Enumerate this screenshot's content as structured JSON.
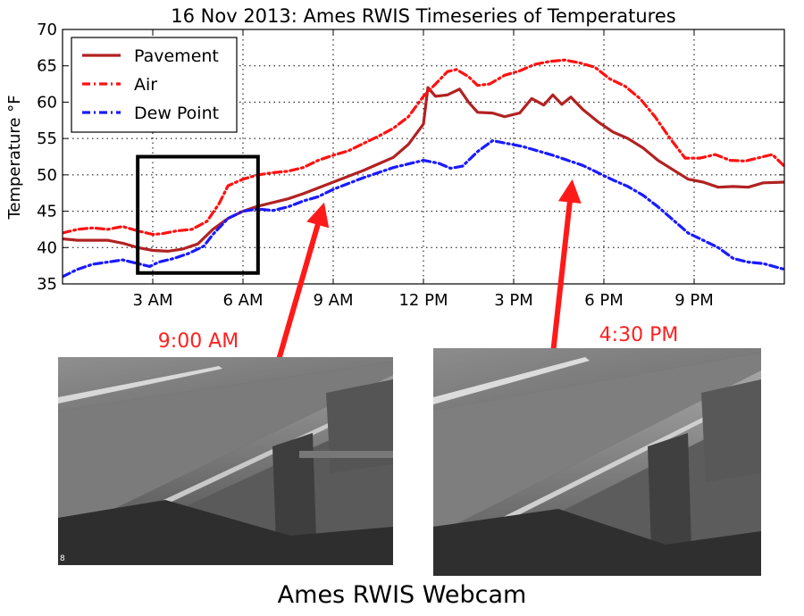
{
  "chart_data": {
    "type": "line",
    "title": "16 Nov 2013: Ames RWIS Timeseries of Temperatures",
    "ylabel": "Temperature °F",
    "xlabel": "",
    "xlim": [
      0,
      24
    ],
    "ylim": [
      35,
      70
    ],
    "grid": true,
    "legend_position": "top-left",
    "x_ticks": [
      {
        "value": 3,
        "label": "3 AM"
      },
      {
        "value": 6,
        "label": "6 AM"
      },
      {
        "value": 9,
        "label": "9 AM"
      },
      {
        "value": 12,
        "label": "12 PM"
      },
      {
        "value": 15,
        "label": "3 PM"
      },
      {
        "value": 18,
        "label": "6 PM"
      },
      {
        "value": 21,
        "label": "9 PM"
      }
    ],
    "y_ticks": [
      35,
      40,
      45,
      50,
      55,
      60,
      65,
      70
    ],
    "series": [
      {
        "name": "Pavement",
        "color": "#b22222",
        "style": "solid",
        "points": [
          [
            0,
            41.2
          ],
          [
            0.5,
            41
          ],
          [
            1,
            41
          ],
          [
            1.5,
            41
          ],
          [
            2,
            40.6
          ],
          [
            2.5,
            40
          ],
          [
            3,
            39.6
          ],
          [
            3.5,
            39.5
          ],
          [
            4,
            39.8
          ],
          [
            4.5,
            40.5
          ],
          [
            5,
            42.5
          ],
          [
            5.5,
            44
          ],
          [
            6,
            45
          ],
          [
            6.5,
            45.7
          ],
          [
            7,
            46.2
          ],
          [
            7.5,
            46.7
          ],
          [
            8,
            47.4
          ],
          [
            8.5,
            48.2
          ],
          [
            9,
            49
          ],
          [
            9.5,
            49.8
          ],
          [
            10,
            50.6
          ],
          [
            10.5,
            51.5
          ],
          [
            11,
            52.4
          ],
          [
            11.5,
            54.2
          ],
          [
            12,
            57
          ],
          [
            12.15,
            62
          ],
          [
            12.4,
            60.8
          ],
          [
            12.8,
            61
          ],
          [
            13.2,
            61.8
          ],
          [
            13.5,
            60
          ],
          [
            13.8,
            58.6
          ],
          [
            14.3,
            58.5
          ],
          [
            14.7,
            58
          ],
          [
            15.2,
            58.5
          ],
          [
            15.6,
            60.5
          ],
          [
            16,
            59.6
          ],
          [
            16.3,
            61
          ],
          [
            16.6,
            59.7
          ],
          [
            16.9,
            60.7
          ],
          [
            17.3,
            59
          ],
          [
            17.8,
            57.3
          ],
          [
            18.3,
            55.9
          ],
          [
            18.8,
            55
          ],
          [
            19.3,
            53.7
          ],
          [
            19.8,
            52
          ],
          [
            20.3,
            50.7
          ],
          [
            20.8,
            49.4
          ],
          [
            21.3,
            49
          ],
          [
            21.8,
            48.3
          ],
          [
            22.3,
            48.4
          ],
          [
            22.8,
            48.3
          ],
          [
            23.3,
            48.9
          ],
          [
            24,
            49
          ]
        ]
      },
      {
        "name": "Air",
        "color": "#ff1111",
        "style": "dashdot",
        "points": [
          [
            0,
            42
          ],
          [
            0.5,
            42.5
          ],
          [
            1,
            42.7
          ],
          [
            1.5,
            42.5
          ],
          [
            2,
            42.9
          ],
          [
            2.5,
            42.3
          ],
          [
            3,
            41.8
          ],
          [
            3.3,
            41.9
          ],
          [
            3.8,
            42.3
          ],
          [
            4.3,
            42.5
          ],
          [
            4.8,
            43.6
          ],
          [
            5.2,
            46
          ],
          [
            5.5,
            48.5
          ],
          [
            6,
            49.4
          ],
          [
            6.5,
            50
          ],
          [
            7,
            50.3
          ],
          [
            7.5,
            50.5
          ],
          [
            8,
            51
          ],
          [
            8.5,
            52
          ],
          [
            9,
            52.7
          ],
          [
            9.5,
            53.3
          ],
          [
            10,
            54.3
          ],
          [
            10.5,
            55.3
          ],
          [
            11,
            56.4
          ],
          [
            11.5,
            58
          ],
          [
            12,
            60.8
          ],
          [
            12.4,
            62.5
          ],
          [
            12.8,
            64.2
          ],
          [
            13.1,
            64.5
          ],
          [
            13.5,
            63.5
          ],
          [
            13.8,
            62.3
          ],
          [
            14.2,
            62.5
          ],
          [
            14.7,
            63.7
          ],
          [
            15.2,
            64.3
          ],
          [
            15.7,
            65.2
          ],
          [
            16.2,
            65.6
          ],
          [
            16.7,
            65.8
          ],
          [
            17.2,
            65.4
          ],
          [
            17.7,
            64.8
          ],
          [
            18.2,
            63.2
          ],
          [
            18.7,
            62.2
          ],
          [
            19.2,
            60.5
          ],
          [
            19.7,
            58
          ],
          [
            20.2,
            55
          ],
          [
            20.7,
            52.3
          ],
          [
            21.2,
            52.3
          ],
          [
            21.7,
            52.8
          ],
          [
            22.2,
            52
          ],
          [
            22.7,
            51.9
          ],
          [
            23.2,
            52.4
          ],
          [
            23.6,
            52.8
          ],
          [
            24,
            51.2
          ]
        ]
      },
      {
        "name": "Dew Point",
        "color": "#1a1aff",
        "style": "dashdot",
        "points": [
          [
            0,
            36
          ],
          [
            0.5,
            37
          ],
          [
            1,
            37.7
          ],
          [
            1.5,
            38
          ],
          [
            2,
            38.3
          ],
          [
            2.5,
            37.8
          ],
          [
            2.9,
            37.4
          ],
          [
            3.2,
            38
          ],
          [
            3.7,
            38.5
          ],
          [
            4.2,
            39.2
          ],
          [
            4.7,
            40.2
          ],
          [
            5,
            41.8
          ],
          [
            5.5,
            44
          ],
          [
            6,
            45
          ],
          [
            6.5,
            45.3
          ],
          [
            7,
            45.1
          ],
          [
            7.5,
            45.6
          ],
          [
            8,
            46.4
          ],
          [
            8.5,
            47
          ],
          [
            9,
            48
          ],
          [
            9.5,
            48.8
          ],
          [
            10,
            49.6
          ],
          [
            10.5,
            50.3
          ],
          [
            11,
            51
          ],
          [
            11.5,
            51.5
          ],
          [
            12,
            52
          ],
          [
            12.5,
            51.6
          ],
          [
            12.9,
            50.9
          ],
          [
            13.3,
            51.2
          ],
          [
            13.8,
            53.2
          ],
          [
            14.3,
            54.7
          ],
          [
            14.8,
            54.3
          ],
          [
            15.3,
            53.9
          ],
          [
            15.8,
            53.3
          ],
          [
            16.3,
            52.7
          ],
          [
            16.8,
            52
          ],
          [
            17.3,
            51.3
          ],
          [
            17.8,
            50.3
          ],
          [
            18.3,
            49.3
          ],
          [
            18.8,
            48.4
          ],
          [
            19.3,
            47.2
          ],
          [
            19.8,
            45.6
          ],
          [
            20.3,
            43.8
          ],
          [
            20.8,
            42
          ],
          [
            21.3,
            41
          ],
          [
            21.8,
            40
          ],
          [
            22.3,
            38.5
          ],
          [
            22.8,
            38
          ],
          [
            23.3,
            37.8
          ],
          [
            24,
            37
          ]
        ]
      }
    ],
    "annotations": [
      {
        "label": "9:00 AM",
        "color": "#ff2020"
      },
      {
        "label": "4:30 PM",
        "color": "#ff2020"
      }
    ],
    "highlight_box": {
      "x_range": [
        2.5,
        6.5
      ],
      "y_range": [
        36.5,
        52.5
      ]
    }
  },
  "caption": "Ames RWIS Webcam",
  "webcams": [
    {
      "time": "9:00 AM"
    },
    {
      "time": "4:30 PM"
    }
  ]
}
